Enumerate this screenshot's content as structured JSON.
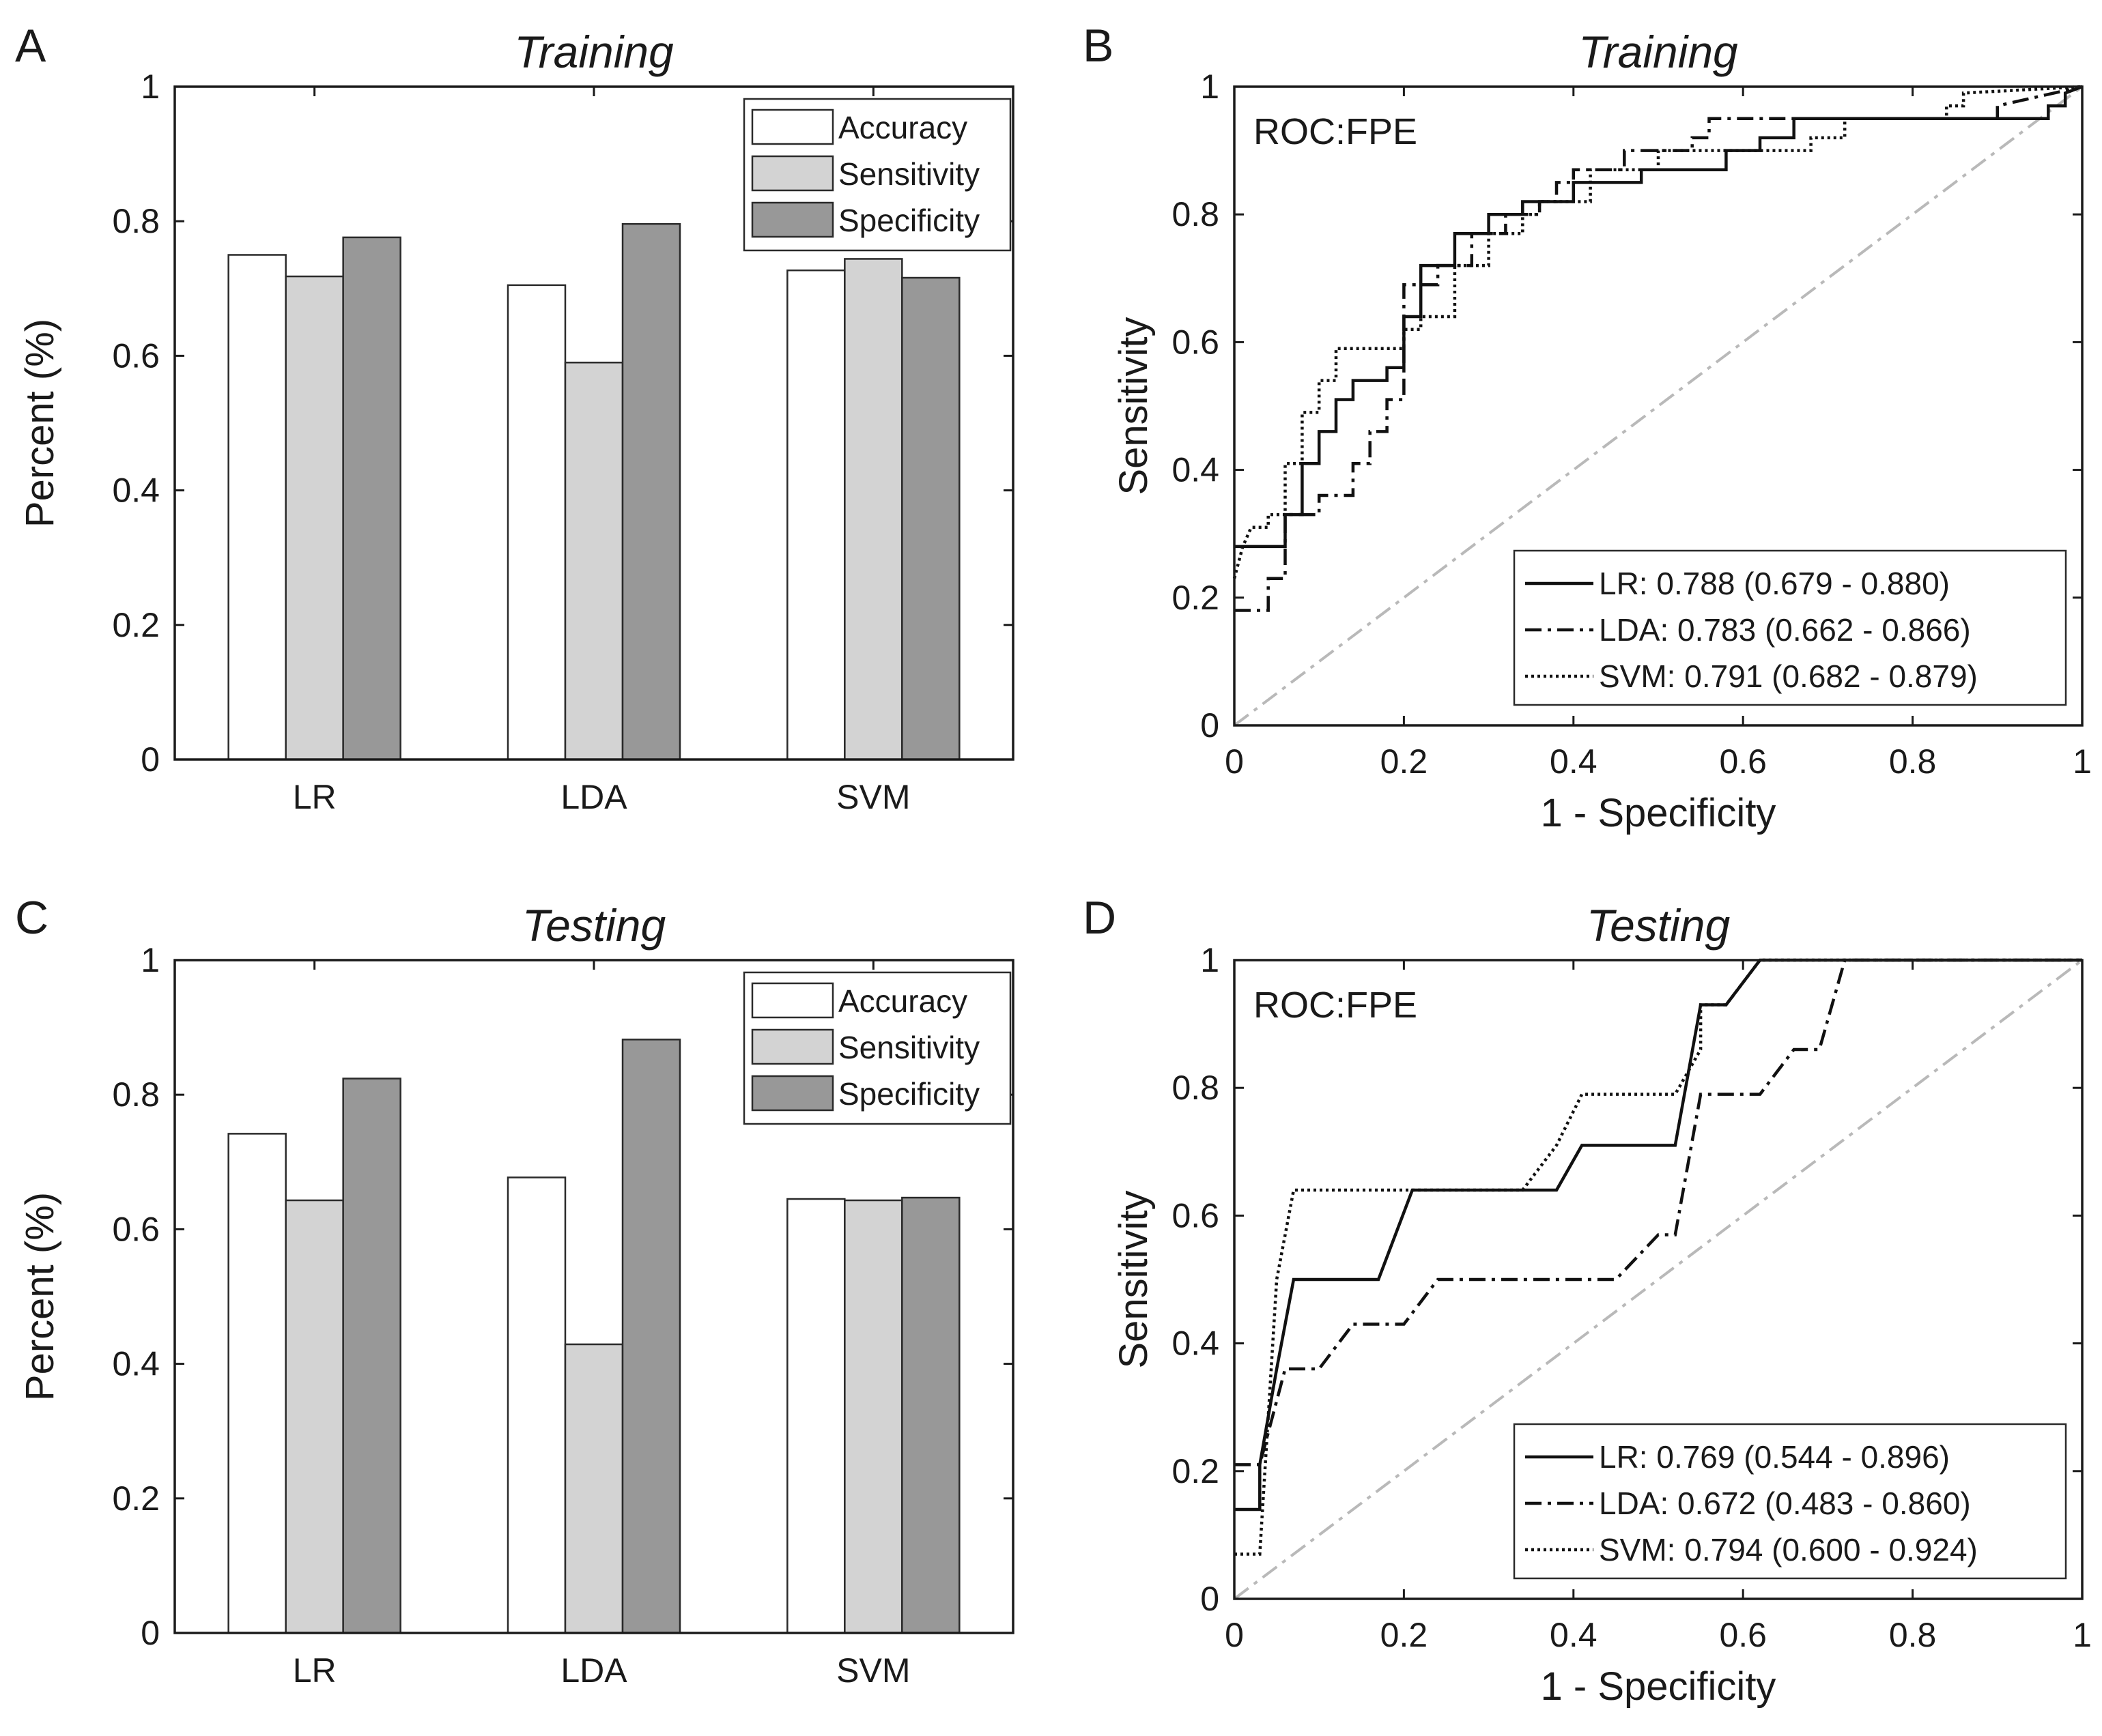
{
  "colors": {
    "accuracy": "#ffffff",
    "sensitivity": "#d3d3d3",
    "specificity": "#989898",
    "diagonal": "#b9b9b9",
    "axis": "#1a1a1a"
  },
  "chart_data": [
    {
      "panel": "A",
      "type": "bar",
      "title": "Training",
      "xlabel": "",
      "ylabel": "Percent (%)",
      "ylim": [
        0,
        1
      ],
      "yticks": [
        "0",
        "0.2",
        "0.4",
        "0.6",
        "0.8",
        "1"
      ],
      "categories": [
        "LR",
        "LDA",
        "SVM"
      ],
      "series": [
        {
          "name": "Accuracy",
          "color_key": "accuracy",
          "values": [
            0.75,
            0.705,
            0.727
          ]
        },
        {
          "name": "Sensitivity",
          "color_key": "sensitivity",
          "values": [
            0.718,
            0.59,
            0.744
          ]
        },
        {
          "name": "Specificity",
          "color_key": "specificity",
          "values": [
            0.776,
            0.796,
            0.716
          ]
        }
      ],
      "legend": "top-right"
    },
    {
      "panel": "B",
      "type": "line",
      "title": "Training",
      "annotation": "ROC:FPE",
      "xlabel": "1 - Specificity",
      "ylabel": "Sensitivity",
      "xlim": [
        0,
        1
      ],
      "ylim": [
        0,
        1
      ],
      "xticks": [
        "0",
        "0.2",
        "0.4",
        "0.6",
        "0.8",
        "1"
      ],
      "yticks": [
        "0",
        "0.2",
        "0.4",
        "0.6",
        "0.8",
        "1"
      ],
      "series": [
        {
          "name": "LR: 0.788 (0.679 - 0.880)",
          "style": "solid",
          "points": [
            [
              0,
              0.28
            ],
            [
              0.06,
              0.28
            ],
            [
              0.06,
              0.33
            ],
            [
              0.08,
              0.33
            ],
            [
              0.08,
              0.41
            ],
            [
              0.1,
              0.41
            ],
            [
              0.1,
              0.46
            ],
            [
              0.12,
              0.46
            ],
            [
              0.12,
              0.51
            ],
            [
              0.14,
              0.51
            ],
            [
              0.14,
              0.54
            ],
            [
              0.18,
              0.54
            ],
            [
              0.18,
              0.56
            ],
            [
              0.2,
              0.56
            ],
            [
              0.2,
              0.64
            ],
            [
              0.22,
              0.64
            ],
            [
              0.22,
              0.72
            ],
            [
              0.26,
              0.72
            ],
            [
              0.26,
              0.77
            ],
            [
              0.3,
              0.77
            ],
            [
              0.3,
              0.8
            ],
            [
              0.34,
              0.8
            ],
            [
              0.34,
              0.82
            ],
            [
              0.4,
              0.82
            ],
            [
              0.4,
              0.85
            ],
            [
              0.48,
              0.85
            ],
            [
              0.48,
              0.87
            ],
            [
              0.58,
              0.87
            ],
            [
              0.58,
              0.9
            ],
            [
              0.62,
              0.9
            ],
            [
              0.62,
              0.92
            ],
            [
              0.66,
              0.92
            ],
            [
              0.66,
              0.95
            ],
            [
              0.96,
              0.95
            ],
            [
              0.96,
              0.97
            ],
            [
              0.98,
              0.97
            ],
            [
              0.98,
              0.99
            ],
            [
              1,
              1
            ]
          ]
        },
        {
          "name": "LDA: 0.783 (0.662 - 0.866)",
          "style": "dashdot",
          "points": [
            [
              0,
              0.18
            ],
            [
              0.04,
              0.18
            ],
            [
              0.04,
              0.23
            ],
            [
              0.06,
              0.23
            ],
            [
              0.06,
              0.33
            ],
            [
              0.1,
              0.33
            ],
            [
              0.1,
              0.36
            ],
            [
              0.14,
              0.36
            ],
            [
              0.14,
              0.41
            ],
            [
              0.16,
              0.41
            ],
            [
              0.16,
              0.46
            ],
            [
              0.18,
              0.46
            ],
            [
              0.18,
              0.51
            ],
            [
              0.2,
              0.51
            ],
            [
              0.2,
              0.69
            ],
            [
              0.24,
              0.69
            ],
            [
              0.24,
              0.72
            ],
            [
              0.28,
              0.72
            ],
            [
              0.28,
              0.77
            ],
            [
              0.32,
              0.77
            ],
            [
              0.32,
              0.8
            ],
            [
              0.36,
              0.8
            ],
            [
              0.36,
              0.82
            ],
            [
              0.38,
              0.82
            ],
            [
              0.38,
              0.85
            ],
            [
              0.4,
              0.85
            ],
            [
              0.4,
              0.87
            ],
            [
              0.46,
              0.87
            ],
            [
              0.46,
              0.9
            ],
            [
              0.54,
              0.9
            ],
            [
              0.54,
              0.92
            ],
            [
              0.56,
              0.92
            ],
            [
              0.56,
              0.95
            ],
            [
              0.9,
              0.95
            ],
            [
              0.9,
              0.97
            ],
            [
              1,
              1
            ]
          ]
        },
        {
          "name": "SVM: 0.791 (0.682 - 0.879)",
          "style": "dotted",
          "points": [
            [
              0,
              0.23
            ],
            [
              0.01,
              0.28
            ],
            [
              0.02,
              0.31
            ],
            [
              0.04,
              0.31
            ],
            [
              0.04,
              0.33
            ],
            [
              0.06,
              0.33
            ],
            [
              0.06,
              0.41
            ],
            [
              0.08,
              0.41
            ],
            [
              0.08,
              0.49
            ],
            [
              0.1,
              0.49
            ],
            [
              0.1,
              0.54
            ],
            [
              0.12,
              0.54
            ],
            [
              0.12,
              0.59
            ],
            [
              0.2,
              0.59
            ],
            [
              0.2,
              0.62
            ],
            [
              0.22,
              0.62
            ],
            [
              0.22,
              0.64
            ],
            [
              0.26,
              0.64
            ],
            [
              0.26,
              0.72
            ],
            [
              0.3,
              0.72
            ],
            [
              0.3,
              0.77
            ],
            [
              0.34,
              0.77
            ],
            [
              0.34,
              0.8
            ],
            [
              0.36,
              0.8
            ],
            [
              0.36,
              0.82
            ],
            [
              0.42,
              0.82
            ],
            [
              0.42,
              0.87
            ],
            [
              0.5,
              0.87
            ],
            [
              0.5,
              0.9
            ],
            [
              0.68,
              0.9
            ],
            [
              0.68,
              0.92
            ],
            [
              0.72,
              0.92
            ],
            [
              0.72,
              0.95
            ],
            [
              0.84,
              0.95
            ],
            [
              0.84,
              0.97
            ],
            [
              0.86,
              0.97
            ],
            [
              0.86,
              0.99
            ],
            [
              1,
              1
            ]
          ]
        }
      ],
      "legend": "bottom-right"
    },
    {
      "panel": "C",
      "type": "bar",
      "title": "Testing",
      "xlabel": "",
      "ylabel": "Percent (%)",
      "ylim": [
        0,
        1
      ],
      "yticks": [
        "0",
        "0.2",
        "0.4",
        "0.6",
        "0.8",
        "1"
      ],
      "categories": [
        "LR",
        "LDA",
        "SVM"
      ],
      "series": [
        {
          "name": "Accuracy",
          "color_key": "accuracy",
          "values": [
            0.742,
            0.677,
            0.645
          ]
        },
        {
          "name": "Sensitivity",
          "color_key": "sensitivity",
          "values": [
            0.643,
            0.429,
            0.643
          ]
        },
        {
          "name": "Specificity",
          "color_key": "specificity",
          "values": [
            0.824,
            0.882,
            0.647
          ]
        }
      ],
      "legend": "top-right"
    },
    {
      "panel": "D",
      "type": "line",
      "title": "Testing",
      "annotation": "ROC:FPE",
      "xlabel": "1 - Specificity",
      "ylabel": "Sensitivity",
      "xlim": [
        0,
        1
      ],
      "ylim": [
        0,
        1
      ],
      "xticks": [
        "0",
        "0.2",
        "0.4",
        "0.6",
        "0.8",
        "1"
      ],
      "yticks": [
        "0",
        "0.2",
        "0.4",
        "0.6",
        "0.8",
        "1"
      ],
      "series": [
        {
          "name": "LR: 0.769 (0.544 - 0.896)",
          "style": "solid",
          "points": [
            [
              0,
              0.14
            ],
            [
              0.03,
              0.14
            ],
            [
              0.03,
              0.21
            ],
            [
              0.05,
              0.36
            ],
            [
              0.07,
              0.5
            ],
            [
              0.17,
              0.5
            ],
            [
              0.21,
              0.64
            ],
            [
              0.38,
              0.64
            ],
            [
              0.41,
              0.71
            ],
            [
              0.52,
              0.71
            ],
            [
              0.55,
              0.93
            ],
            [
              0.58,
              0.93
            ],
            [
              0.62,
              1
            ],
            [
              1,
              1
            ]
          ]
        },
        {
          "name": "LDA: 0.672 (0.483 - 0.860)",
          "style": "dashdot",
          "points": [
            [
              0,
              0.21
            ],
            [
              0.03,
              0.21
            ],
            [
              0.06,
              0.36
            ],
            [
              0.1,
              0.36
            ],
            [
              0.14,
              0.43
            ],
            [
              0.2,
              0.43
            ],
            [
              0.24,
              0.5
            ],
            [
              0.45,
              0.5
            ],
            [
              0.5,
              0.57
            ],
            [
              0.52,
              0.57
            ],
            [
              0.55,
              0.79
            ],
            [
              0.62,
              0.79
            ],
            [
              0.66,
              0.86
            ],
            [
              0.69,
              0.86
            ],
            [
              0.72,
              1
            ],
            [
              1,
              1
            ]
          ]
        },
        {
          "name": "SVM: 0.794 (0.600 - 0.924)",
          "style": "dotted",
          "points": [
            [
              0,
              0.07
            ],
            [
              0.03,
              0.07
            ],
            [
              0.05,
              0.5
            ],
            [
              0.07,
              0.64
            ],
            [
              0.34,
              0.64
            ],
            [
              0.38,
              0.71
            ],
            [
              0.41,
              0.79
            ],
            [
              0.52,
              0.79
            ],
            [
              0.55,
              0.86
            ],
            [
              0.55,
              0.93
            ],
            [
              0.58,
              0.93
            ],
            [
              0.62,
              1
            ],
            [
              1,
              1
            ]
          ]
        }
      ],
      "legend": "bottom-right"
    }
  ]
}
